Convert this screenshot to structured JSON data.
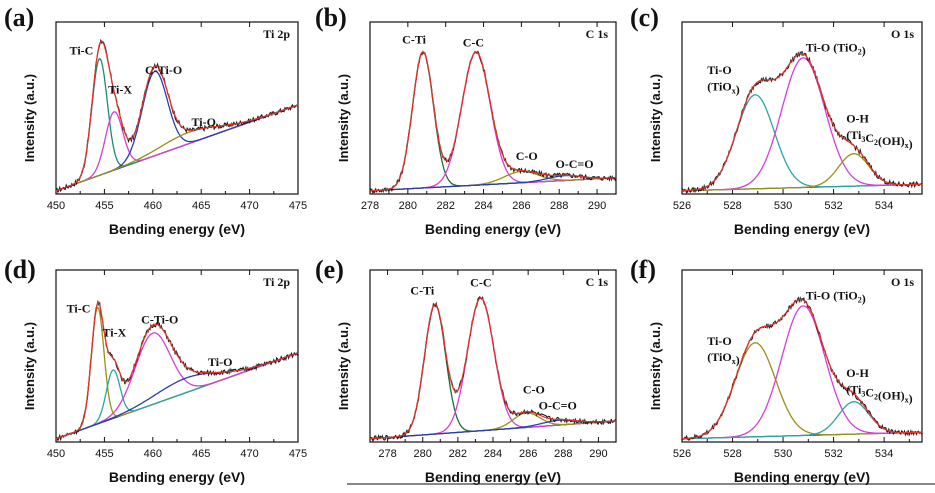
{
  "colors": {
    "raw": "#1a1a1a",
    "envelope": "#e8322a",
    "background": "#2b3ea8",
    "blue": "#2b3ea8",
    "green": "#1f8a70",
    "magenta": "#d63fd6",
    "olive": "#9a8f1a",
    "teal": "#2aa6a6",
    "darkgreen": "#1f6b3c"
  },
  "chart_data": [
    {
      "type": "line",
      "panel": "(a)",
      "core_level": "Ti 2p",
      "xlabel": "Bending energy (eV)",
      "ylabel": "Intensity (a.u.)",
      "xlim": [
        450,
        475
      ],
      "ylim": [
        0,
        1
      ],
      "xticks": [
        "450",
        "455",
        "460",
        "465",
        "470",
        "475"
      ],
      "baseline": {
        "x0": 450,
        "y0": 0.02,
        "x1": 475,
        "y1": 0.55
      },
      "peaks": [
        {
          "name": "Ti-C",
          "center": 454.5,
          "height": 0.72,
          "width": 0.8,
          "color": "#1f8a70"
        },
        {
          "name": "Ti-X",
          "center": 456.0,
          "height": 0.36,
          "width": 0.9,
          "color": "#d63fd6"
        },
        {
          "name": "C-Ti-O",
          "center": 460.2,
          "height": 0.52,
          "width": 1.3,
          "color": "#2b3ea8"
        },
        {
          "name": "Ti-O",
          "center": 463.8,
          "height": 0.07,
          "width": 3.0,
          "color": "#9a8f1a"
        }
      ],
      "labels": [
        {
          "text": "Ti-C",
          "x": 451.4,
          "y": 0.86
        },
        {
          "text": "Ti-X",
          "x": 455.4,
          "y": 0.62
        },
        {
          "text": "C-Ti-O",
          "x": 459.2,
          "y": 0.74
        },
        {
          "text": "Ti-O",
          "x": 464.0,
          "y": 0.42
        }
      ]
    },
    {
      "type": "line",
      "panel": "(b)",
      "core_level": "C 1s",
      "xlabel": "Bending energy (eV)",
      "ylabel": "Intensity (a.u.)",
      "xlim": [
        278,
        291
      ],
      "ylim": [
        0,
        1
      ],
      "xticks": [
        "278",
        "280",
        "282",
        "284",
        "286",
        "288",
        "290"
      ],
      "baseline": {
        "x0": 278,
        "y0": 0.02,
        "x1": 291,
        "y1": 0.1
      },
      "peaks": [
        {
          "name": "C-Ti",
          "center": 280.8,
          "height": 0.84,
          "width": 0.55,
          "color": "#1f6b3c"
        },
        {
          "name": "C-C",
          "center": 283.6,
          "height": 0.82,
          "width": 0.75,
          "color": "#d63fd6"
        },
        {
          "name": "C-O",
          "center": 286.0,
          "height": 0.07,
          "width": 0.9,
          "color": "#9a8f1a"
        },
        {
          "name": "O-C=O",
          "center": 288.3,
          "height": 0.03,
          "width": 0.9,
          "color": "#2b3ea8"
        }
      ],
      "labels": [
        {
          "text": "C-Ti",
          "x": 279.7,
          "y": 0.93
        },
        {
          "text": "C-C",
          "x": 282.9,
          "y": 0.91
        },
        {
          "text": "C-O",
          "x": 285.7,
          "y": 0.21
        },
        {
          "text": "O-C=O",
          "x": 287.8,
          "y": 0.16
        }
      ]
    },
    {
      "type": "line",
      "panel": "(c)",
      "core_level": "O 1s",
      "xlabel": "Bending energy (eV)",
      "ylabel": "Intensity (a.u.)",
      "xlim": [
        526,
        535.5
      ],
      "ylim": [
        0,
        1
      ],
      "xticks": [
        "526",
        "528",
        "530",
        "532",
        "534"
      ],
      "baseline": {
        "x0": 526,
        "y0": 0.02,
        "x1": 535.5,
        "y1": 0.06
      },
      "peaks": [
        {
          "name": "Ti-O (TiOx)",
          "center": 528.9,
          "height": 0.58,
          "width": 0.75,
          "color": "#2aa6a6"
        },
        {
          "name": "Ti-O (TiO2)",
          "center": 530.8,
          "height": 0.8,
          "width": 0.85,
          "color": "#d63fd6"
        },
        {
          "name": "O-H (Ti3C2(OH)x)",
          "center": 532.8,
          "height": 0.2,
          "width": 0.6,
          "color": "#9a8f1a"
        }
      ],
      "labels": [
        {
          "text": "Ti-O",
          "x": 527.0,
          "y": 0.74
        },
        {
          "text": "(TiO",
          "sub": "x",
          "tail": ")",
          "x": 527.0,
          "y": 0.64
        },
        {
          "text": "Ti-O (TiO",
          "sub": "2",
          "tail": ")",
          "x": 530.9,
          "y": 0.88
        },
        {
          "text": "O-H",
          "x": 532.5,
          "y": 0.44
        },
        {
          "text": "(Ti",
          "sub": "3",
          "mid": "C",
          "sub2": "2",
          "tail": "(OH)",
          "sub3": "x",
          "tail2": ")",
          "x": 532.5,
          "y": 0.34
        }
      ]
    },
    {
      "type": "line",
      "panel": "(d)",
      "core_level": "Ti 2p",
      "xlabel": "Bending energy (eV)",
      "ylabel": "Intensity (a.u.)",
      "xlim": [
        450,
        475
      ],
      "ylim": [
        0,
        1
      ],
      "xticks": [
        "450",
        "455",
        "460",
        "465",
        "470",
        "475"
      ],
      "baseline": {
        "x0": 450,
        "y0": 0.02,
        "x1": 475,
        "y1": 0.55
      },
      "peaks": [
        {
          "name": "Ti-C",
          "center": 454.3,
          "height": 0.72,
          "width": 0.65,
          "color": "#9a8f1a"
        },
        {
          "name": "Ti-X",
          "center": 455.9,
          "height": 0.3,
          "width": 0.7,
          "color": "#2aa6a6"
        },
        {
          "name": "C-Ti-O",
          "center": 460.0,
          "height": 0.44,
          "width": 1.8,
          "color": "#d63fd6"
        },
        {
          "name": "Ti-O",
          "center": 463.5,
          "height": 0.09,
          "width": 3.2,
          "color": "#2b3ea8"
        }
      ],
      "labels": [
        {
          "text": "Ti-C",
          "x": 451.1,
          "y": 0.8
        },
        {
          "text": "Ti-X",
          "x": 454.8,
          "y": 0.65
        },
        {
          "text": "C-Ti-O",
          "x": 458.8,
          "y": 0.73
        },
        {
          "text": "Ti-O",
          "x": 465.7,
          "y": 0.47
        }
      ]
    },
    {
      "type": "line",
      "panel": "(e)",
      "core_level": "C 1s",
      "xlabel": "Bending energy (eV)",
      "ylabel": "Intensity (a.u.)",
      "xlim": [
        277,
        291
      ],
      "ylim": [
        0,
        1
      ],
      "xticks": [
        "278",
        "280",
        "282",
        "284",
        "286",
        "288",
        "290"
      ],
      "baseline": {
        "x0": 277,
        "y0": 0.02,
        "x1": 291,
        "y1": 0.13
      },
      "peaks": [
        {
          "name": "C-Ti",
          "center": 280.7,
          "height": 0.8,
          "width": 0.6,
          "color": "#1f6b3c"
        },
        {
          "name": "C-C",
          "center": 283.3,
          "height": 0.82,
          "width": 0.75,
          "color": "#d63fd6"
        },
        {
          "name": "C-O",
          "center": 285.9,
          "height": 0.09,
          "width": 0.75,
          "color": "#9a8f1a"
        },
        {
          "name": "O-C=O",
          "center": 287.8,
          "height": 0.03,
          "width": 1.0,
          "color": "#2b3ea8"
        }
      ],
      "labels": [
        {
          "text": "C-Ti",
          "x": 279.3,
          "y": 0.91
        },
        {
          "text": "C-C",
          "x": 282.7,
          "y": 0.96
        },
        {
          "text": "C-O",
          "x": 285.7,
          "y": 0.3
        },
        {
          "text": "O-C=O",
          "x": 286.6,
          "y": 0.2
        }
      ]
    },
    {
      "type": "line",
      "panel": "(f)",
      "core_level": "O 1s",
      "xlabel": "Bending energy (eV)",
      "ylabel": "Intensity (a.u.)",
      "xlim": [
        526,
        535.5
      ],
      "ylim": [
        0,
        1
      ],
      "xticks": [
        "526",
        "528",
        "530",
        "532",
        "534"
      ],
      "baseline": {
        "x0": 526,
        "y0": 0.02,
        "x1": 535.5,
        "y1": 0.06
      },
      "peaks": [
        {
          "name": "Ti-O (TiOx)",
          "center": 528.9,
          "height": 0.58,
          "width": 0.8,
          "color": "#9a8f1a"
        },
        {
          "name": "Ti-O (TiO2)",
          "center": 530.8,
          "height": 0.8,
          "width": 0.85,
          "color": "#d63fd6"
        },
        {
          "name": "O-H (Ti3C2(OH)x)",
          "center": 532.8,
          "height": 0.2,
          "width": 0.6,
          "color": "#2aa6a6"
        }
      ],
      "labels": [
        {
          "text": "Ti-O",
          "x": 527.0,
          "y": 0.6
        },
        {
          "text": "(TiO",
          "sub": "x",
          "tail": ")",
          "x": 527.0,
          "y": 0.5
        },
        {
          "text": "Ti-O (TiO",
          "sub": "2",
          "tail": ")",
          "x": 530.9,
          "y": 0.88
        },
        {
          "text": "O-H",
          "x": 532.5,
          "y": 0.4
        },
        {
          "text": "(Ti",
          "sub": "3",
          "mid": "C",
          "sub2": "2",
          "tail": "(OH)",
          "sub3": "x",
          "tail2": ")",
          "x": 532.5,
          "y": 0.3
        }
      ]
    }
  ]
}
